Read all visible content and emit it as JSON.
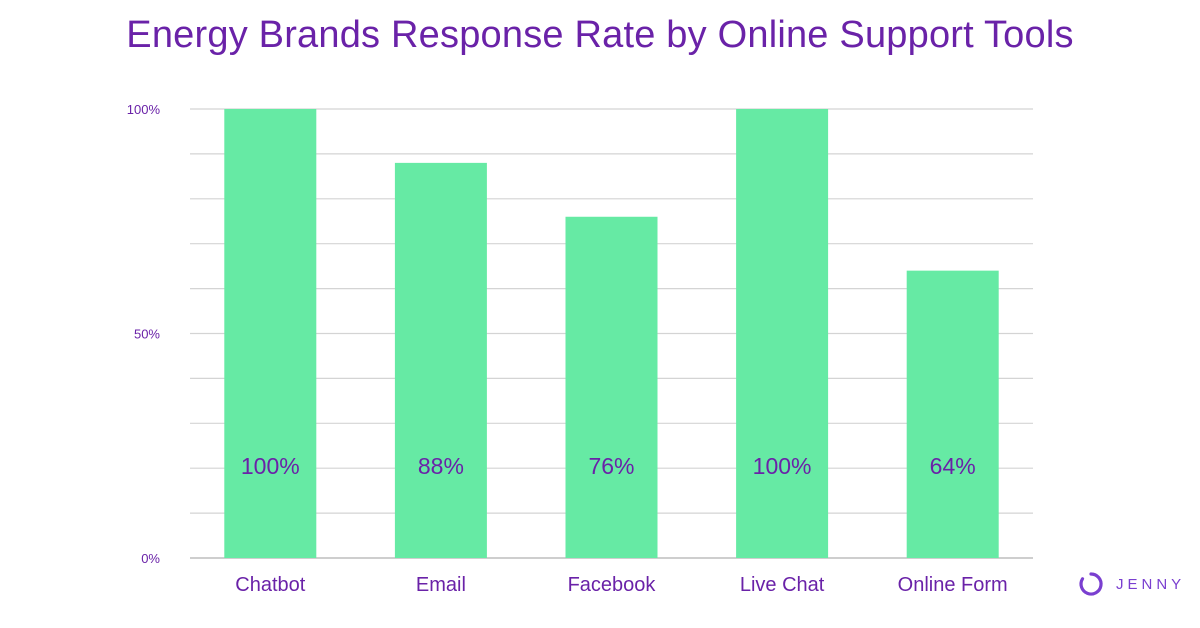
{
  "chart_data": {
    "type": "bar",
    "title": "Energy Brands Response Rate by Online Support Tools",
    "categories": [
      "Chatbot",
      "Email",
      "Facebook",
      "Live Chat",
      "Online Form"
    ],
    "values": [
      100,
      88,
      76,
      100,
      64
    ],
    "value_labels": [
      "100%",
      "88%",
      "76%",
      "100%",
      "64%"
    ],
    "ylim": [
      0,
      100
    ],
    "y_ticks": [
      {
        "value": 0,
        "label": "0%"
      },
      {
        "value": 50,
        "label": "50%"
      },
      {
        "value": 100,
        "label": "100%"
      }
    ],
    "grid": true,
    "xlabel": "",
    "ylabel": "",
    "colors": {
      "bar": "#66eaa4",
      "title": "#6a22a8",
      "label": "#6a22a8",
      "grid": "#d4d4d4",
      "axis": "#bdbdbd"
    }
  },
  "brand": {
    "name": "JENNY",
    "icon": "jenny-logo-icon",
    "color": "#7a3fd0"
  }
}
